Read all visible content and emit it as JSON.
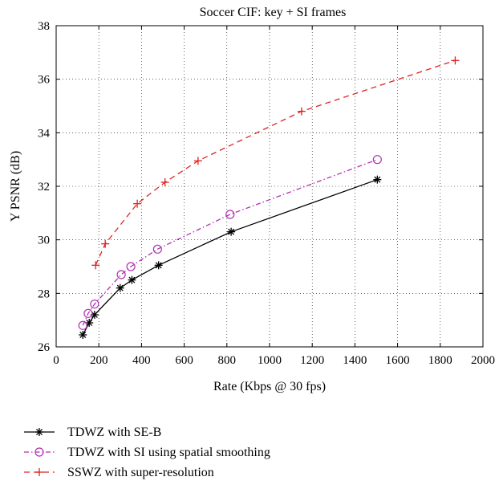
{
  "chart_data": {
    "type": "line",
    "title": "Soccer CIF: key + SI frames",
    "xlabel": "Rate (Kbps @ 30 fps)",
    "ylabel": "Y PSNR (dB)",
    "xlim": [
      0,
      2000
    ],
    "ylim": [
      26,
      38
    ],
    "xticks": [
      0,
      200,
      400,
      600,
      800,
      1000,
      1200,
      1400,
      1600,
      1800,
      2000
    ],
    "yticks": [
      26,
      28,
      30,
      32,
      34,
      36,
      38
    ],
    "grid": "dotted",
    "legend_position": "below",
    "series": [
      {
        "name": "TDWZ with SE-B",
        "color": "#000000",
        "line_style": "solid",
        "marker": "asterisk",
        "x": [
          125,
          155,
          180,
          300,
          355,
          480,
          820,
          1505
        ],
        "y": [
          26.45,
          26.9,
          27.2,
          28.2,
          28.5,
          29.05,
          30.3,
          32.25
        ]
      },
      {
        "name": "TDWZ with SI using spatial smoothing",
        "color": "#b030b0",
        "line_style": "dashdot",
        "marker": "circle",
        "x": [
          125,
          150,
          180,
          305,
          350,
          475,
          815,
          1505
        ],
        "y": [
          26.8,
          27.25,
          27.6,
          28.7,
          29.0,
          29.65,
          30.95,
          33.0
        ]
      },
      {
        "name": "SSWZ with super-resolution",
        "color": "#e02020",
        "line_style": "dashed",
        "marker": "plus",
        "x": [
          185,
          230,
          380,
          510,
          665,
          1150,
          1870
        ],
        "y": [
          29.05,
          29.85,
          31.35,
          32.15,
          32.95,
          34.8,
          36.7
        ]
      }
    ]
  }
}
